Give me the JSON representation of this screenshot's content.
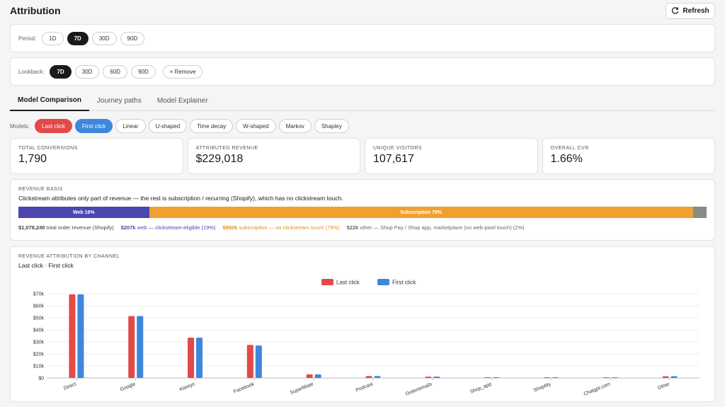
{
  "header": {
    "title": "Attribution",
    "refresh_label": "Refresh"
  },
  "period": {
    "label": "Period:",
    "options": [
      "1D",
      "7D",
      "30D",
      "90D"
    ],
    "selected": "7D"
  },
  "lookback": {
    "label": "Lookback:",
    "options": [
      "7D",
      "30D",
      "60D",
      "90D"
    ],
    "selected": "7D",
    "remove_label": "× Remove"
  },
  "tabs": [
    "Model Comparison",
    "Journey paths",
    "Model Explainer"
  ],
  "models": {
    "label": "Models:",
    "options": [
      "Last click",
      "First click",
      "Linear",
      "U-shaped",
      "Time decay",
      "W-shaped",
      "Markov",
      "Shapley"
    ],
    "selected": [
      "Last click",
      "First click"
    ]
  },
  "stats": [
    {
      "label": "TOTAL CONVERSIONS",
      "value": "1,790"
    },
    {
      "label": "ATTRIBUTED REVENUE",
      "value": "$229,018"
    },
    {
      "label": "UNIQUE VISITORS",
      "value": "107,617"
    },
    {
      "label": "OVERALL CVR",
      "value": "1.66%"
    }
  ],
  "revenue_basis": {
    "label": "REVENUE BASIS",
    "description": "Clickstream attributes only part of revenue — the rest is subscription / recurring (Shopify), which has no clickstream touch.",
    "segments": [
      {
        "label": "Web 19%",
        "share": 0.19,
        "color": "#4b46b0"
      },
      {
        "label": "Subscription 79%",
        "share": 0.79,
        "color": "#f0a030"
      },
      {
        "label": "",
        "share": 0.02,
        "color": "#8a8a86"
      }
    ],
    "total_value": "$1,078,240",
    "total_text": "total order revenue (Shopify)",
    "web_value": "$207k",
    "web_text": "web — clickstream-eligible (19%)",
    "sub_value": "$850k",
    "sub_text": "subscription — no clickstream touch (79%)",
    "other_value": "$22k",
    "other_text": "other — Shop Pay / Shop app, marketplace (no web-pixel touch) (2%)"
  },
  "chart_card": {
    "label": "REVENUE ATTRIBUTION BY CHANNEL",
    "subtitle": "Last click · First click"
  },
  "chart_data": {
    "type": "bar",
    "categories": [
      "Direct",
      "Google",
      "Klaviyo",
      "Facebook",
      "Superfiliate",
      "Podcast",
      "Order/emails",
      "Shop_app",
      "ShopMy",
      "Chatgpt.com",
      "Other"
    ],
    "series": [
      {
        "name": "Last click",
        "color": "#e24a4a",
        "values": [
          69500,
          51500,
          33500,
          27500,
          3000,
          1600,
          1100,
          600,
          600,
          500,
          1400
        ]
      },
      {
        "name": "First click",
        "color": "#3d87dc",
        "values": [
          69500,
          51500,
          33500,
          27000,
          3000,
          1600,
          1100,
          600,
          600,
          500,
          1500
        ]
      }
    ],
    "yticks": [
      "$0",
      "$10k",
      "$20k",
      "$30k",
      "$40k",
      "$50k",
      "$60k",
      "$70k"
    ],
    "ylim": [
      0,
      70000
    ],
    "grid": true,
    "legend": "top-center"
  }
}
